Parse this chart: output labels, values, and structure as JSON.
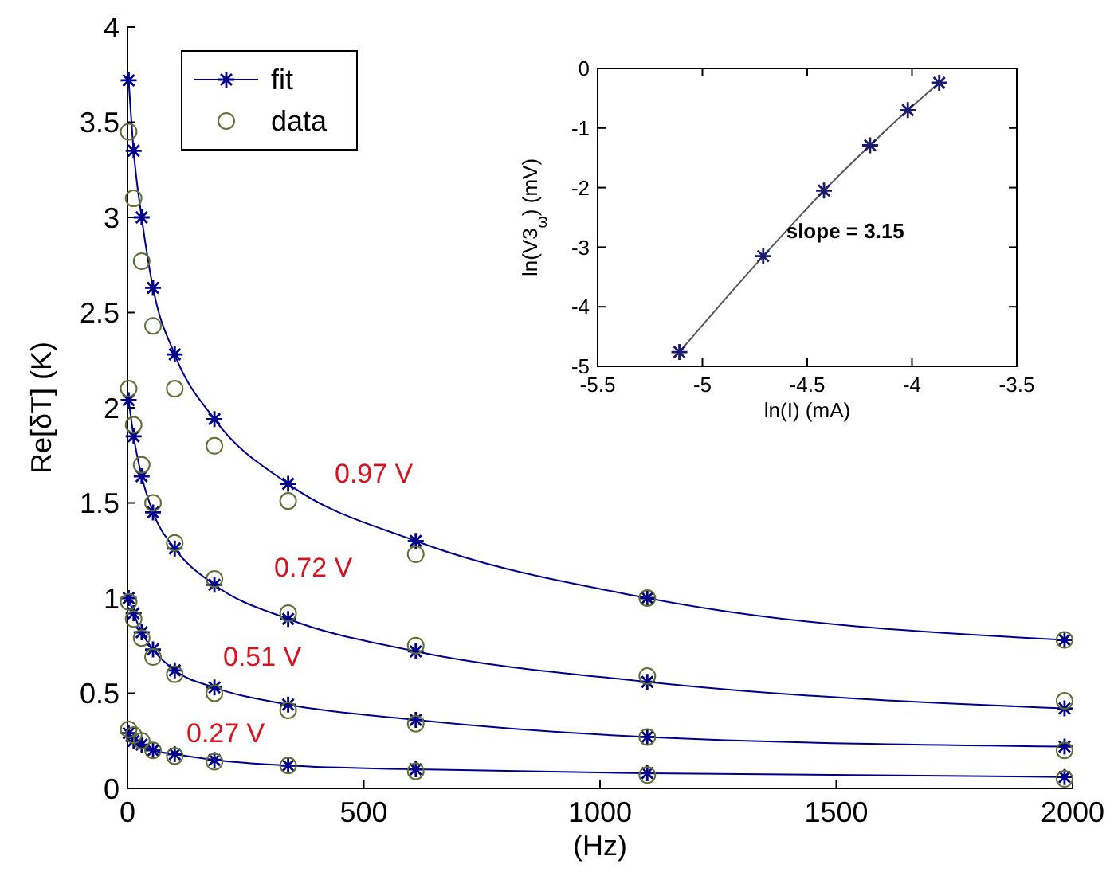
{
  "chart_data": [
    {
      "type": "line",
      "xlabel": "(Hz)",
      "ylabel": "Re[δT] (K)",
      "x": [
        2.5,
        13,
        30,
        54,
        100,
        184,
        340,
        610,
        1100,
        1983
      ],
      "xlim": [
        0,
        2000
      ],
      "xticks": [
        0,
        500,
        1000,
        1500,
        2000
      ],
      "ylim": [
        0,
        4
      ],
      "yticks": [
        0,
        0.5,
        1,
        1.5,
        2,
        2.5,
        3,
        3.5,
        4
      ],
      "grid": false,
      "legend": "top left",
      "series": [
        {
          "name": "fit",
          "type": "line",
          "marker": "cross",
          "color": "#00008b",
          "values": [
            3.72,
            3.35,
            3.0,
            2.63,
            2.28,
            1.94,
            1.6,
            1.3,
            1.0,
            0.78
          ]
        },
        {
          "name": "data",
          "type": "scatter",
          "marker": "circle",
          "color": "#5f6f35",
          "values": [
            3.45,
            3.1,
            2.77,
            2.43,
            2.1,
            1.8,
            1.51,
            1.23,
            1.0,
            0.78
          ]
        },
        {
          "type": "line",
          "marker": "cross",
          "color": "#00008b",
          "values": [
            2.04,
            1.85,
            1.64,
            1.45,
            1.26,
            1.07,
            0.89,
            0.72,
            0.56,
            0.42
          ]
        },
        {
          "type": "scatter",
          "marker": "circle",
          "color": "#5f6f35",
          "values": [
            2.1,
            1.91,
            1.7,
            1.5,
            1.29,
            1.1,
            0.92,
            0.75,
            0.59,
            0.46
          ]
        },
        {
          "type": "line",
          "marker": "cross",
          "color": "#00008b",
          "values": [
            1.0,
            0.92,
            0.82,
            0.73,
            0.62,
            0.53,
            0.44,
            0.36,
            0.27,
            0.22
          ]
        },
        {
          "type": "scatter",
          "marker": "circle",
          "color": "#5f6f35",
          "values": [
            0.98,
            0.89,
            0.79,
            0.69,
            0.6,
            0.5,
            0.41,
            0.34,
            0.27,
            0.2
          ]
        },
        {
          "type": "line",
          "marker": "cross",
          "color": "#00008b",
          "values": [
            0.29,
            0.25,
            0.23,
            0.2,
            0.18,
            0.15,
            0.12,
            0.1,
            0.08,
            0.06
          ]
        },
        {
          "type": "scatter",
          "marker": "circle",
          "color": "#5f6f35",
          "values": [
            0.31,
            0.28,
            0.25,
            0.2,
            0.17,
            0.14,
            0.12,
            0.09,
            0.07,
            0.05
          ]
        }
      ],
      "annotations": [
        "0.97 V",
        "0.72 V",
        "0.51 V",
        "0.27 V"
      ]
    },
    {
      "type": "line",
      "xlabel": "ln(I) (mA)",
      "ylabel": "ln(V3$_{ω}$) (mV)",
      "x": [
        -5.11,
        -4.71,
        -4.42,
        -4.2,
        -4.02,
        -3.87
      ],
      "xlim": [
        -5.5,
        -3.5
      ],
      "xticks": [
        -5.5,
        -5,
        -4.5,
        -4,
        -3.5
      ],
      "ylim": [
        -5,
        0
      ],
      "yticks": [
        -5,
        -4,
        -3,
        -2,
        -1,
        0
      ],
      "grid": false,
      "series": [
        {
          "type": "line",
          "marker": "cross",
          "color": "#1a1a6e",
          "values": [
            -4.76,
            -3.15,
            -2.05,
            -1.29,
            -0.7,
            -0.24
          ]
        }
      ],
      "annotations": [
        "slope = 3.15"
      ]
    }
  ]
}
